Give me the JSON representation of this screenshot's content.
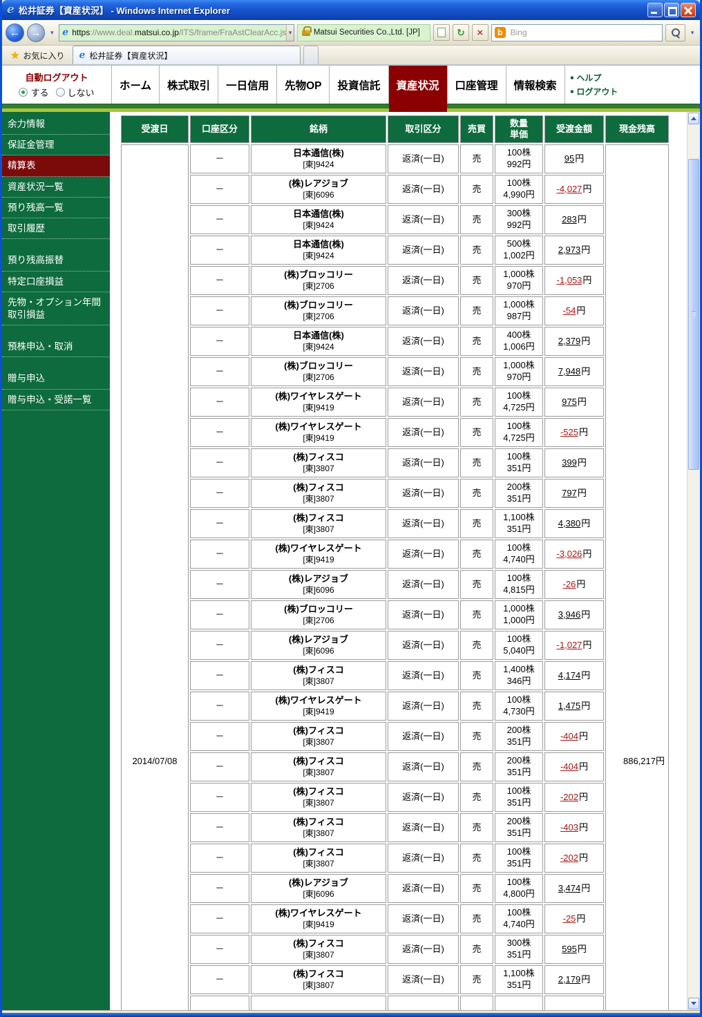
{
  "window": {
    "title": "松井証券【資産状況】 - Windows Internet Explorer"
  },
  "icons": {
    "ie_logo": "e",
    "back_arrow": "←",
    "forward_arrow": "→",
    "caret_down": "▼",
    "star": "★",
    "bing_logo": "b",
    "refresh": "↻",
    "stop": "×",
    "menu_square": "■"
  },
  "colors": {
    "green": "#0e6b3e",
    "darkred": "#8b0000",
    "selred": "#7b0b0b",
    "neg": "#a61414",
    "evgreen": "#d9f2cf"
  },
  "toolbar": {
    "url": {
      "scheme": "https",
      "host_prefix": "://www.deal.",
      "domain": "matsui.co.jp",
      "path": "/ITS/frame/FraAstClearAcc.js"
    },
    "identity": "Matsui Securities Co.,Ltd. [JP]",
    "search_placeholder": "Bing"
  },
  "tabbar": {
    "favorites": "お気に入り",
    "tab_title": "松井証券【資産状況】"
  },
  "nav": {
    "autologout_label": "自動ログアウト",
    "radio_on": "する",
    "radio_off": "しない",
    "items": [
      {
        "label": "ホーム"
      },
      {
        "label": "株式取引"
      },
      {
        "label": "一日信用"
      },
      {
        "label": "先物OP"
      },
      {
        "label": "投資信託"
      },
      {
        "label": "資産状況",
        "selected": true
      },
      {
        "label": "口座管理"
      },
      {
        "label": "情報検索"
      }
    ],
    "help": "ヘルプ",
    "logout": "ログアウト"
  },
  "sidebar": {
    "items": [
      {
        "label": "余力情報"
      },
      {
        "label": "保証金管理"
      },
      {
        "label": "精算表",
        "selected": true
      },
      {
        "label": "資産状況一覧"
      },
      {
        "label": "預り残高一覧"
      },
      {
        "label": "取引履歴"
      },
      {
        "label": "預り残高振替",
        "gap": true
      },
      {
        "label": "特定口座損益"
      },
      {
        "label": "先物・オプション年間取引損益"
      },
      {
        "label": "預株申込・取消",
        "gap": true
      },
      {
        "label": "贈与申込",
        "gap": true
      },
      {
        "label": "贈与申込・受諾一覧"
      }
    ]
  },
  "table": {
    "headers": {
      "date": "受渡日",
      "account": "口座区分",
      "name": "銘柄",
      "type": "取引区分",
      "side": "売買",
      "qty": "数量",
      "price": "単価",
      "amount": "受渡金額",
      "balance": "現金残高"
    },
    "date": "2014/07/08",
    "balance": "886,217円",
    "yen": "円",
    "rows": [
      {
        "account": "－",
        "name": "日本通信(株)",
        "code": "[東]9424",
        "type": "返済(一日)",
        "side": "売",
        "qty": "100株",
        "price": "992円",
        "amount": "95"
      },
      {
        "account": "－",
        "name": "(株)レアジョブ",
        "code": "[東]6096",
        "type": "返済(一日)",
        "side": "売",
        "qty": "100株",
        "price": "4,990円",
        "amount": "-4,027"
      },
      {
        "account": "－",
        "name": "日本通信(株)",
        "code": "[東]9424",
        "type": "返済(一日)",
        "side": "売",
        "qty": "300株",
        "price": "992円",
        "amount": "283"
      },
      {
        "account": "－",
        "name": "日本通信(株)",
        "code": "[東]9424",
        "type": "返済(一日)",
        "side": "売",
        "qty": "500株",
        "price": "1,002円",
        "amount": "2,973"
      },
      {
        "account": "－",
        "name": "(株)ブロッコリー",
        "code": "[東]2706",
        "type": "返済(一日)",
        "side": "売",
        "qty": "1,000株",
        "price": "970円",
        "amount": "-1,053"
      },
      {
        "account": "－",
        "name": "(株)ブロッコリー",
        "code": "[東]2706",
        "type": "返済(一日)",
        "side": "売",
        "qty": "1,000株",
        "price": "987円",
        "amount": "-54"
      },
      {
        "account": "－",
        "name": "日本通信(株)",
        "code": "[東]9424",
        "type": "返済(一日)",
        "side": "売",
        "qty": "400株",
        "price": "1,006円",
        "amount": "2,379"
      },
      {
        "account": "－",
        "name": "(株)ブロッコリー",
        "code": "[東]2706",
        "type": "返済(一日)",
        "side": "売",
        "qty": "1,000株",
        "price": "970円",
        "amount": "7,948"
      },
      {
        "account": "－",
        "name": "(株)ワイヤレスゲート",
        "code": "[東]9419",
        "type": "返済(一日)",
        "side": "売",
        "qty": "100株",
        "price": "4,725円",
        "amount": "975"
      },
      {
        "account": "－",
        "name": "(株)ワイヤレスゲート",
        "code": "[東]9419",
        "type": "返済(一日)",
        "side": "売",
        "qty": "100株",
        "price": "4,725円",
        "amount": "-525"
      },
      {
        "account": "－",
        "name": "(株)フィスコ",
        "code": "[東]3807",
        "type": "返済(一日)",
        "side": "売",
        "qty": "100株",
        "price": "351円",
        "amount": "399"
      },
      {
        "account": "－",
        "name": "(株)フィスコ",
        "code": "[東]3807",
        "type": "返済(一日)",
        "side": "売",
        "qty": "200株",
        "price": "351円",
        "amount": "797"
      },
      {
        "account": "－",
        "name": "(株)フィスコ",
        "code": "[東]3807",
        "type": "返済(一日)",
        "side": "売",
        "qty": "1,100株",
        "price": "351円",
        "amount": "4,380"
      },
      {
        "account": "－",
        "name": "(株)ワイヤレスゲート",
        "code": "[東]9419",
        "type": "返済(一日)",
        "side": "売",
        "qty": "100株",
        "price": "4,740円",
        "amount": "-3,026"
      },
      {
        "account": "－",
        "name": "(株)レアジョブ",
        "code": "[東]6096",
        "type": "返済(一日)",
        "side": "売",
        "qty": "100株",
        "price": "4,815円",
        "amount": "-26"
      },
      {
        "account": "－",
        "name": "(株)ブロッコリー",
        "code": "[東]2706",
        "type": "返済(一日)",
        "side": "売",
        "qty": "1,000株",
        "price": "1,000円",
        "amount": "3,946"
      },
      {
        "account": "－",
        "name": "(株)レアジョブ",
        "code": "[東]6096",
        "type": "返済(一日)",
        "side": "売",
        "qty": "100株",
        "price": "5,040円",
        "amount": "-1,027"
      },
      {
        "account": "－",
        "name": "(株)フィスコ",
        "code": "[東]3807",
        "type": "返済(一日)",
        "side": "売",
        "qty": "1,400株",
        "price": "346円",
        "amount": "4,174"
      },
      {
        "account": "－",
        "name": "(株)ワイヤレスゲート",
        "code": "[東]9419",
        "type": "返済(一日)",
        "side": "売",
        "qty": "100株",
        "price": "4,730円",
        "amount": "1,475"
      },
      {
        "account": "－",
        "name": "(株)フィスコ",
        "code": "[東]3807",
        "type": "返済(一日)",
        "side": "売",
        "qty": "200株",
        "price": "351円",
        "amount": "-404"
      },
      {
        "account": "－",
        "name": "(株)フィスコ",
        "code": "[東]3807",
        "type": "返済(一日)",
        "side": "売",
        "qty": "200株",
        "price": "351円",
        "amount": "-404"
      },
      {
        "account": "－",
        "name": "(株)フィスコ",
        "code": "[東]3807",
        "type": "返済(一日)",
        "side": "売",
        "qty": "100株",
        "price": "351円",
        "amount": "-202"
      },
      {
        "account": "－",
        "name": "(株)フィスコ",
        "code": "[東]3807",
        "type": "返済(一日)",
        "side": "売",
        "qty": "200株",
        "price": "351円",
        "amount": "-403"
      },
      {
        "account": "－",
        "name": "(株)フィスコ",
        "code": "[東]3807",
        "type": "返済(一日)",
        "side": "売",
        "qty": "100株",
        "price": "351円",
        "amount": "-202"
      },
      {
        "account": "－",
        "name": "(株)レアジョブ",
        "code": "[東]6096",
        "type": "返済(一日)",
        "side": "売",
        "qty": "100株",
        "price": "4,800円",
        "amount": "3,474"
      },
      {
        "account": "－",
        "name": "(株)ワイヤレスゲート",
        "code": "[東]9419",
        "type": "返済(一日)",
        "side": "売",
        "qty": "100株",
        "price": "4,740円",
        "amount": "-25"
      },
      {
        "account": "－",
        "name": "(株)フィスコ",
        "code": "[東]3807",
        "type": "返済(一日)",
        "side": "売",
        "qty": "300株",
        "price": "351円",
        "amount": "595"
      },
      {
        "account": "－",
        "name": "(株)フィスコ",
        "code": "[東]3807",
        "type": "返済(一日)",
        "side": "売",
        "qty": "1,100株",
        "price": "351円",
        "amount": "2,179"
      }
    ]
  }
}
